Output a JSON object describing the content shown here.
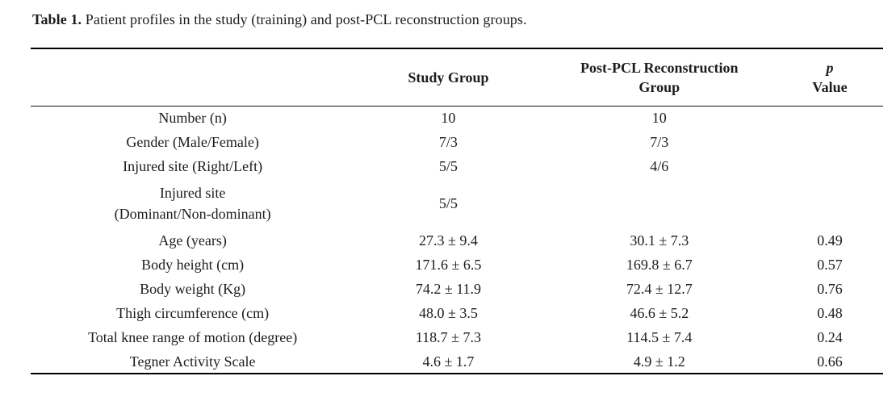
{
  "caption": {
    "label": "Table 1.",
    "text": " Patient profiles in the study (training) and post-PCL reconstruction groups."
  },
  "table": {
    "header": {
      "col_label": "",
      "col_study": "Study Group",
      "col_post": "Post-PCL Reconstruction\nGroup",
      "col_p_line1": "p",
      "col_p_line2": "Value"
    },
    "rows": [
      {
        "label": "Number (n)",
        "study": "10",
        "post": "10",
        "p": ""
      },
      {
        "label": "Gender (Male/Female)",
        "study": "7/3",
        "post": "7/3",
        "p": ""
      },
      {
        "label": "Injured site (Right/Left)",
        "study": "5/5",
        "post": "4/6",
        "p": ""
      },
      {
        "label": "Injured site\n(Dominant/Non-dominant)",
        "study": "5/5",
        "post": "",
        "p": ""
      },
      {
        "label": "Age (years)",
        "study": "27.3 ± 9.4",
        "post": "30.1 ± 7.3",
        "p": "0.49"
      },
      {
        "label": "Body height (cm)",
        "study": "171.6 ± 6.5",
        "post": "169.8 ± 6.7",
        "p": "0.57"
      },
      {
        "label": "Body weight (Kg)",
        "study": "74.2 ± 11.9",
        "post": "72.4 ± 12.7",
        "p": "0.76"
      },
      {
        "label": "Thigh circumference (cm)",
        "study": "48.0 ± 3.5",
        "post": "46.6 ± 5.2",
        "p": "0.48"
      },
      {
        "label": "Total knee range of motion (degree)",
        "study": "118.7 ± 7.3",
        "post": "114.5 ± 7.4",
        "p": "0.24"
      },
      {
        "label": "Tegner Activity Scale",
        "study": "4.6 ± 1.7",
        "post": "4.9 ± 1.2",
        "p": "0.66"
      }
    ]
  },
  "colors": {
    "text": "#1c1c1c",
    "rule": "#000000",
    "background": "#ffffff"
  }
}
